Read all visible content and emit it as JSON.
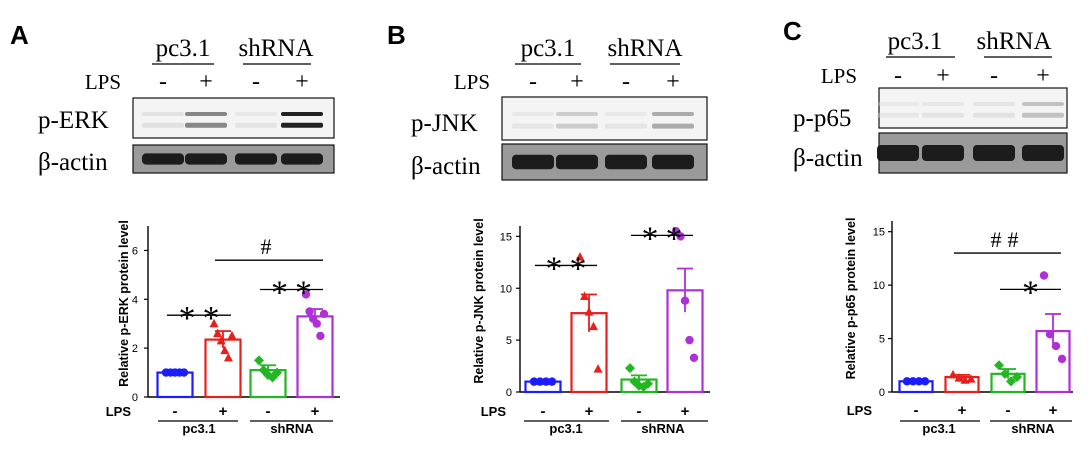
{
  "panels": [
    {
      "letter": "A",
      "groups": [
        "pc3.1",
        "shRNA"
      ],
      "lps_label": "LPS",
      "lps_signs": [
        "-",
        "+",
        "-",
        "+"
      ],
      "blots": [
        {
          "label": "p-ERK",
          "intensity": [
            0.18,
            0.68,
            0.12,
            0.95
          ]
        },
        {
          "label": "β-actin",
          "intensity": [
            0.95,
            0.95,
            0.95,
            0.95
          ]
        }
      ],
      "chart_data": {
        "type": "bar",
        "ylabel": "Relative p-ERK protein level",
        "ylim": [
          0,
          7
        ],
        "yticks": [
          0,
          2,
          4,
          6
        ],
        "x_lps_label": "LPS",
        "x_lps_signs": [
          "-",
          "+",
          "-",
          "+"
        ],
        "group_labels": [
          "pc3.1",
          "shRNA"
        ],
        "categories": [
          "pc3.1 LPS-",
          "pc3.1 LPS+",
          "shRNA LPS-",
          "shRNA LPS+"
        ],
        "values": [
          1.0,
          2.35,
          1.1,
          3.3
        ],
        "errors": [
          0.05,
          0.35,
          0.2,
          0.3
        ],
        "points": [
          [
            1,
            1,
            1,
            1,
            1
          ],
          [
            3.0,
            2.6,
            2.3,
            1.9,
            1.6,
            2.5
          ],
          [
            1.5,
            1.1,
            0.9,
            0.8,
            1.0
          ],
          [
            4.2,
            3.5,
            3.2,
            3.0,
            2.5,
            3.4
          ]
        ],
        "colors": [
          "#1c1cff",
          "#e8201c",
          "#22b622",
          "#b030d8"
        ],
        "annotations": [
          {
            "text": "**",
            "from": 0,
            "to": 1,
            "y": 3.35
          },
          {
            "text": "**",
            "from": 2,
            "to": 3,
            "y": 4.4
          },
          {
            "text": "#",
            "from": 1,
            "to": 3,
            "y": 5.6
          }
        ]
      }
    },
    {
      "letter": "B",
      "groups": [
        "pc3.1",
        "shRNA"
      ],
      "lps_label": "LPS",
      "lps_signs": [
        "-",
        "+",
        "-",
        "+"
      ],
      "blots": [
        {
          "label": "p-JNK",
          "intensity": [
            0.12,
            0.4,
            0.12,
            0.55
          ]
        },
        {
          "label": "β-actin",
          "intensity": [
            0.95,
            0.95,
            0.95,
            0.95
          ]
        }
      ],
      "chart_data": {
        "type": "bar",
        "ylabel": "Relative p-JNK protein level",
        "ylim": [
          0,
          16
        ],
        "yticks": [
          0,
          5,
          10,
          15
        ],
        "x_lps_label": "LPS",
        "x_lps_signs": [
          "-",
          "+",
          "-",
          "+"
        ],
        "group_labels": [
          "pc3.1",
          "shRNA"
        ],
        "categories": [
          "pc3.1 LPS-",
          "pc3.1 LPS+",
          "shRNA LPS-",
          "shRNA LPS+"
        ],
        "values": [
          1.0,
          7.6,
          1.2,
          9.8
        ],
        "errors": [
          0.1,
          1.8,
          0.4,
          2.1
        ],
        "points": [
          [
            1,
            1,
            1,
            1
          ],
          [
            13.0,
            9.2,
            7.7,
            6.3,
            2.2
          ],
          [
            2.3,
            1.0,
            0.6,
            0.5,
            0.8
          ],
          [
            15.5,
            15.0,
            8.8,
            5.0,
            3.3
          ]
        ],
        "colors": [
          "#1c1cff",
          "#e8201c",
          "#22b622",
          "#b030d8"
        ],
        "annotations": [
          {
            "text": "**",
            "from": 0,
            "to": 1,
            "y": 12.2
          },
          {
            "text": "**",
            "from": 2,
            "to": 3,
            "y": 15.1
          }
        ]
      }
    },
    {
      "letter": "C",
      "groups": [
        "pc3.1",
        "shRNA"
      ],
      "lps_label": "LPS",
      "lps_signs": [
        "-",
        "+",
        "-",
        "+"
      ],
      "blots": [
        {
          "label": "p-p65",
          "intensity": [
            0.1,
            0.13,
            0.16,
            0.45
          ]
        },
        {
          "label": "β-actin",
          "intensity": [
            0.95,
            0.95,
            0.95,
            0.95
          ]
        }
      ],
      "chart_data": {
        "type": "bar",
        "ylabel": "Relative p-p65 protein level",
        "ylim": [
          0,
          16
        ],
        "yticks": [
          0,
          5,
          10,
          15
        ],
        "x_lps_label": "LPS",
        "x_lps_signs": [
          "-",
          "+",
          "-",
          "+"
        ],
        "group_labels": [
          "pc3.1",
          "shRNA"
        ],
        "categories": [
          "pc3.1 LPS-",
          "pc3.1 LPS+",
          "shRNA LPS-",
          "shRNA LPS+"
        ],
        "values": [
          1.0,
          1.4,
          1.7,
          5.7
        ],
        "errors": [
          0.05,
          0.2,
          0.45,
          1.6
        ],
        "points": [
          [
            1,
            1,
            1,
            1
          ],
          [
            1.6,
            1.3,
            1.1,
            1.2
          ],
          [
            2.5,
            1.7,
            1.0,
            1.4
          ],
          [
            10.9,
            5.4,
            4.3,
            3.1
          ]
        ],
        "colors": [
          "#1c1cff",
          "#e8201c",
          "#22b622",
          "#b030d8"
        ],
        "annotations": [
          {
            "text": "*",
            "from": 2,
            "to": 3,
            "y": 9.6
          },
          {
            "text": "##",
            "from": 1,
            "to": 3,
            "y": 13.0
          }
        ]
      }
    }
  ]
}
